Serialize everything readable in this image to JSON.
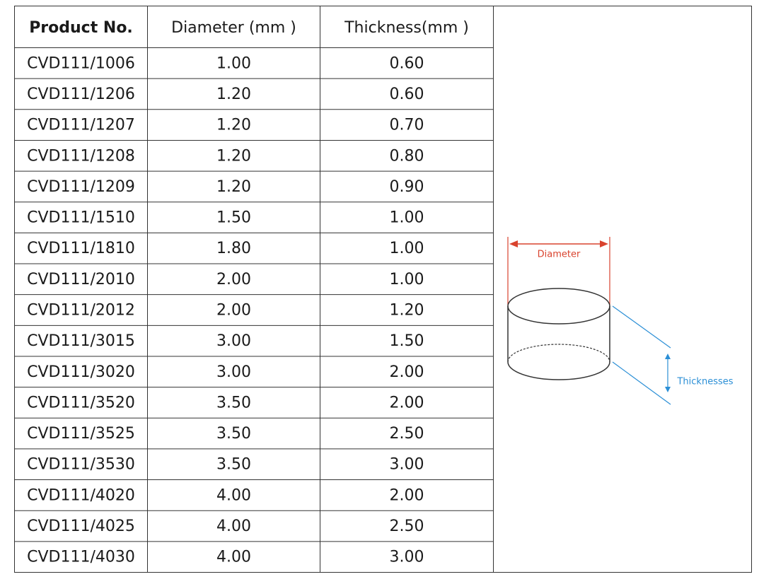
{
  "table": {
    "header": [
      "Product No.",
      "Diameter (mm )",
      "Thickness(mm )"
    ],
    "rows": [
      [
        "CVD111/1006",
        "1.00",
        "0.60"
      ],
      [
        "CVD111/1206",
        "1.20",
        "0.60"
      ],
      [
        "CVD111/1207",
        "1.20",
        "0.70"
      ],
      [
        "CVD111/1208",
        "1.20",
        "0.80"
      ],
      [
        "CVD111/1209",
        "1.20",
        "0.90"
      ],
      [
        "CVD111/1510",
        "1.50",
        "1.00"
      ],
      [
        "CVD111/1810",
        "1.80",
        "1.00"
      ],
      [
        "CVD111/2010",
        "2.00",
        "1.00"
      ],
      [
        "CVD111/2012",
        "2.00",
        "1.20"
      ],
      [
        "CVD111/3015",
        "3.00",
        "1.50"
      ],
      [
        "CVD111/3020",
        "3.00",
        "2.00"
      ],
      [
        "CVD111/3520",
        "3.50",
        "2.00"
      ],
      [
        "CVD111/3525",
        "3.50",
        "2.50"
      ],
      [
        "CVD111/3530",
        "3.50",
        "3.00"
      ],
      [
        "CVD111/4020",
        "4.00",
        "2.00"
      ],
      [
        "CVD111/4025",
        "4.00",
        "2.50"
      ],
      [
        "CVD111/4030",
        "4.00",
        "3.00"
      ]
    ]
  },
  "diagram": {
    "diameter_label": "Diameter",
    "thickness_label": "Thicknesses"
  }
}
